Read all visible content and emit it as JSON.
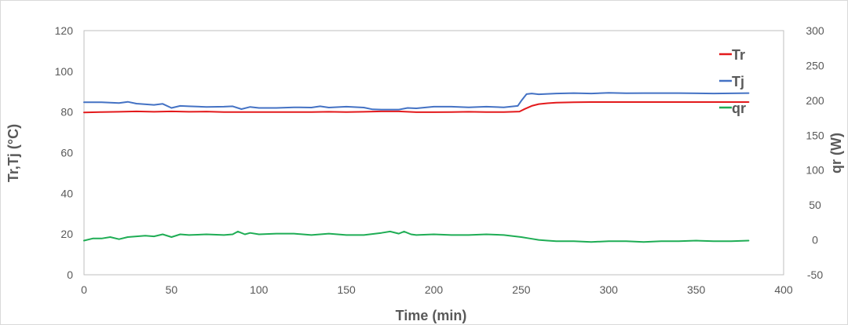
{
  "chart_data": {
    "type": "line",
    "xlabel": "Time (min)",
    "ylabel_left": "Tr,Tj (°C)",
    "ylabel_right": "qr (W)",
    "xlim": [
      0,
      400
    ],
    "ylim_left": [
      0,
      120
    ],
    "ylim_right": [
      -50,
      300
    ],
    "xticks": [
      "0",
      "50",
      "100",
      "150",
      "200",
      "250",
      "300",
      "350",
      "400"
    ],
    "yticks_left": [
      "0",
      "20",
      "40",
      "60",
      "80",
      "100",
      "120"
    ],
    "yticks_right": [
      "-50",
      "0",
      "50",
      "100",
      "150",
      "200",
      "250",
      "300"
    ],
    "grid": false,
    "legend_position": "top-right",
    "series": [
      {
        "name": "Tr",
        "axis": "left",
        "color": "#e31a1c",
        "x": [
          0,
          10,
          20,
          30,
          40,
          50,
          60,
          70,
          80,
          90,
          100,
          110,
          120,
          130,
          140,
          150,
          160,
          170,
          180,
          190,
          200,
          210,
          220,
          230,
          240,
          249,
          252,
          256,
          260,
          265,
          270,
          280,
          290,
          300,
          320,
          340,
          360,
          380
        ],
        "y": [
          79.8,
          80.0,
          80.1,
          80.3,
          80.1,
          80.3,
          80.1,
          80.2,
          80.0,
          80.0,
          80.0,
          80.0,
          80.0,
          80.0,
          80.1,
          80.0,
          80.1,
          80.3,
          80.3,
          79.9,
          79.9,
          80.0,
          80.1,
          80.0,
          80.0,
          80.2,
          81.5,
          83.0,
          83.9,
          84.3,
          84.6,
          84.8,
          84.9,
          84.9,
          84.9,
          84.9,
          84.9,
          84.9
        ]
      },
      {
        "name": "Tj",
        "axis": "left",
        "color": "#4472c4",
        "x": [
          0,
          10,
          20,
          25,
          30,
          40,
          45,
          50,
          55,
          60,
          70,
          80,
          85,
          90,
          95,
          100,
          110,
          120,
          130,
          135,
          140,
          150,
          160,
          165,
          170,
          180,
          185,
          190,
          200,
          210,
          220,
          230,
          240,
          248,
          250,
          253,
          256,
          260,
          270,
          280,
          290,
          300,
          310,
          320,
          340,
          360,
          380
        ],
        "y": [
          84.8,
          84.8,
          84.4,
          85.0,
          84.1,
          83.5,
          84.0,
          82.0,
          83.0,
          82.8,
          82.5,
          82.6,
          82.8,
          81.4,
          82.5,
          82.0,
          82.0,
          82.3,
          82.2,
          82.8,
          82.2,
          82.6,
          82.2,
          81.3,
          81.2,
          81.2,
          82.0,
          81.8,
          82.6,
          82.6,
          82.3,
          82.6,
          82.3,
          83.0,
          85.5,
          88.8,
          89.1,
          88.7,
          89.1,
          89.3,
          89.1,
          89.4,
          89.2,
          89.3,
          89.3,
          89.1,
          89.3
        ]
      },
      {
        "name": "qr",
        "axis": "right",
        "color": "#1fad55",
        "x": [
          0,
          5,
          10,
          15,
          20,
          25,
          30,
          35,
          40,
          45,
          50,
          55,
          60,
          70,
          80,
          85,
          88,
          92,
          95,
          100,
          110,
          120,
          130,
          140,
          150,
          160,
          170,
          175,
          180,
          183,
          187,
          190,
          200,
          210,
          220,
          230,
          240,
          250,
          255,
          260,
          265,
          270,
          280,
          290,
          300,
          310,
          320,
          330,
          340,
          350,
          360,
          370,
          380
        ],
        "y": [
          -1,
          2,
          2,
          4,
          1,
          4,
          5,
          6,
          5,
          8,
          4,
          8,
          7,
          8,
          7,
          8,
          12,
          8,
          10,
          8,
          9,
          9,
          7,
          9,
          7,
          7,
          10,
          12,
          9,
          12,
          8,
          7,
          8,
          7,
          7,
          8,
          7,
          4,
          2,
          0,
          -1,
          -2,
          -2,
          -3,
          -2,
          -2,
          -3,
          -2,
          -2,
          -1,
          -2,
          -2,
          -1
        ]
      }
    ]
  }
}
